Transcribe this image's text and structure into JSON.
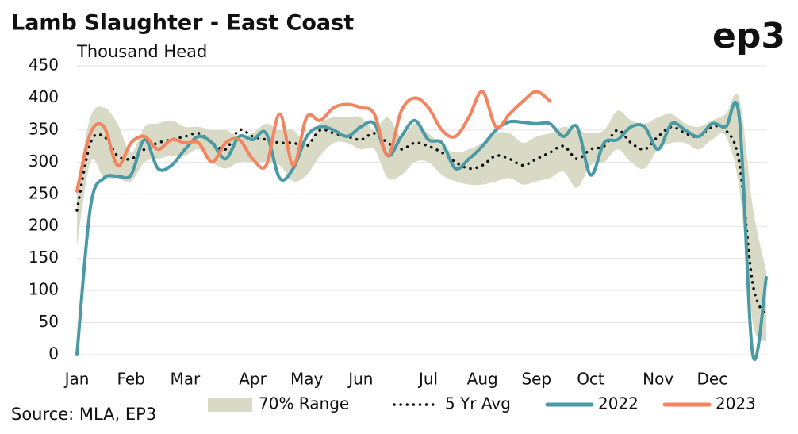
{
  "chart_data": {
    "type": "line",
    "title": "Lamb Slaughter - East Coast",
    "subtitle": "Thousand Head",
    "source": "Source: MLA, EP3",
    "logo": "ep3",
    "categories": [
      "Jan",
      null,
      null,
      null,
      "Feb",
      null,
      null,
      null,
      "Mar",
      null,
      null,
      null,
      null,
      "Apr",
      null,
      null,
      null,
      "May",
      null,
      null,
      null,
      "Jun",
      null,
      null,
      null,
      null,
      "Jul",
      null,
      null,
      null,
      "Aug",
      null,
      null,
      null,
      "Sep",
      null,
      null,
      null,
      "Oct",
      null,
      null,
      null,
      null,
      "Nov",
      null,
      null,
      null,
      "Dec",
      null,
      null,
      null,
      null
    ],
    "ylim": [
      0,
      450
    ],
    "yticks": [
      0,
      50,
      100,
      150,
      200,
      250,
      300,
      350,
      400,
      450
    ],
    "grid": true,
    "range": {
      "name": "70% Range",
      "color": "#d9dac6",
      "lower": [
        170,
        300,
        275,
        275,
        270,
        300,
        305,
        310,
        310,
        320,
        300,
        290,
        300,
        300,
        300,
        295,
        270,
        280,
        310,
        330,
        330,
        320,
        320,
        275,
        280,
        300,
        300,
        280,
        270,
        265,
        265,
        270,
        275,
        265,
        270,
        275,
        285,
        260,
        295,
        300,
        320,
        300,
        290,
        320,
        330,
        330,
        320,
        335,
        340,
        260,
        50,
        20
      ],
      "upper": [
        260,
        370,
        385,
        360,
        315,
        355,
        360,
        365,
        355,
        355,
        350,
        350,
        340,
        345,
        360,
        350,
        350,
        330,
        360,
        370,
        370,
        370,
        350,
        370,
        340,
        360,
        345,
        325,
        315,
        320,
        330,
        345,
        345,
        330,
        340,
        345,
        355,
        350,
        345,
        350,
        380,
        365,
        360,
        370,
        375,
        360,
        355,
        365,
        375,
        400,
        230,
        130
      ]
    },
    "series": [
      {
        "name": "5 Yr Avg",
        "color": "#111111",
        "dotted": true,
        "values": [
          225,
          330,
          340,
          310,
          305,
          320,
          330,
          335,
          340,
          345,
          330,
          320,
          350,
          340,
          335,
          330,
          330,
          325,
          350,
          345,
          340,
          335,
          345,
          330,
          320,
          330,
          325,
          315,
          300,
          290,
          295,
          310,
          305,
          295,
          305,
          315,
          325,
          305,
          320,
          325,
          350,
          330,
          320,
          340,
          355,
          345,
          340,
          355,
          350,
          300,
          110,
          60
        ]
      },
      {
        "name": "2022",
        "color": "#4a9aa5",
        "values": [
          0,
          230,
          275,
          278,
          280,
          335,
          290,
          295,
          320,
          340,
          330,
          305,
          340,
          335,
          345,
          275,
          290,
          340,
          355,
          350,
          340,
          355,
          360,
          310,
          340,
          365,
          335,
          330,
          290,
          305,
          325,
          350,
          363,
          362,
          360,
          360,
          340,
          355,
          280,
          330,
          335,
          355,
          355,
          320,
          360,
          350,
          340,
          360,
          355,
          370,
          0,
          120
        ]
      },
      {
        "name": "2023",
        "color": "#f4845f",
        "values": [
          255,
          345,
          355,
          295,
          330,
          340,
          320,
          335,
          330,
          330,
          300,
          330,
          335,
          305,
          295,
          375,
          295,
          370,
          365,
          385,
          390,
          385,
          375,
          310,
          380,
          400,
          385,
          350,
          340,
          370,
          410,
          355,
          375,
          395,
          410,
          395,
          null,
          null,
          null,
          null,
          null,
          null,
          null,
          null,
          null,
          null,
          null,
          null,
          null,
          null,
          null,
          null
        ]
      }
    ]
  }
}
